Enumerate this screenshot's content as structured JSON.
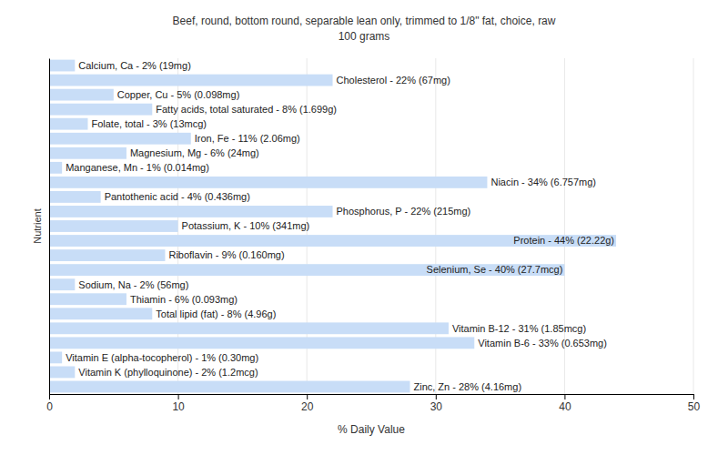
{
  "chart_data": {
    "type": "bar",
    "orientation": "horizontal",
    "title": "Beef, round, bottom round, separable lean only, trimmed to 1/8\" fat, choice, raw",
    "subtitle": "100 grams",
    "x_label": "% Daily Value",
    "y_label": "Nutrient",
    "categories": [
      "Calcium, Ca",
      "Cholesterol",
      "Copper, Cu",
      "Fatty acids, total saturated",
      "Folate, total",
      "Iron, Fe",
      "Magnesium, Mg",
      "Manganese, Mn",
      "Niacin",
      "Pantothenic acid",
      "Phosphorus, P",
      "Potassium, K",
      "Protein",
      "Riboflavin",
      "Selenium, Se",
      "Sodium, Na",
      "Thiamin",
      "Total lipid (fat)",
      "Vitamin B-12",
      "Vitamin B-6",
      "Vitamin E (alpha-tocopherol)",
      "Vitamin K (phylloquinone)",
      "Zinc, Zn"
    ],
    "values": [
      2,
      22,
      5,
      8,
      3,
      11,
      6,
      1,
      34,
      4,
      22,
      10,
      44,
      9,
      40,
      2,
      6,
      8,
      31,
      33,
      1,
      2,
      28
    ],
    "value_labels": [
      "Calcium, Ca - 2% (19mg)",
      "Cholesterol - 22% (67mg)",
      "Copper, Cu - 5% (0.098mg)",
      "Fatty acids, total saturated - 8% (1.699g)",
      "Folate, total - 3% (13mcg)",
      "Iron, Fe - 11% (2.06mg)",
      "Magnesium, Mg - 6% (24mg)",
      "Manganese, Mn - 1% (0.014mg)",
      "Niacin - 34% (6.757mg)",
      "Pantothenic acid - 4% (0.436mg)",
      "Phosphorus, P - 22% (215mg)",
      "Potassium, K - 10% (341mg)",
      "Protein - 44% (22.22g)",
      "Riboflavin - 9% (0.160mg)",
      "Selenium, Se - 40% (27.7mcg)",
      "Sodium, Na - 2% (56mg)",
      "Thiamin - 6% (0.093mg)",
      "Total lipid (fat) - 8% (4.96g)",
      "Vitamin B-12 - 31% (1.85mcg)",
      "Vitamin B-6 - 33% (0.653mg)",
      "Vitamin E (alpha-tocopherol) - 1% (0.30mg)",
      "Vitamin K (phylloquinone) - 2% (1.2mcg)",
      "Zinc, Zn - 28% (4.16mg)"
    ],
    "color": "#c8ddf7",
    "xlim": [
      0,
      50
    ],
    "xticks": [
      0,
      10,
      20,
      30,
      40,
      50
    ],
    "grid": true,
    "data_labels": true,
    "tick_labels": "x"
  }
}
